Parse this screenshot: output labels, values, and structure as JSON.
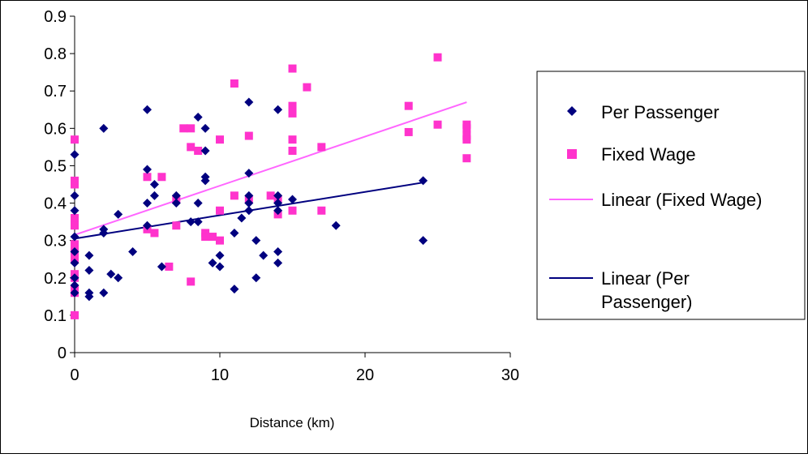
{
  "chart_data": {
    "type": "scatter",
    "title": "",
    "xlabel": "Distance (km)",
    "ylabel": "",
    "xlim": [
      0,
      30
    ],
    "ylim": [
      0,
      0.9
    ],
    "x_ticks": [
      0,
      10,
      20,
      30
    ],
    "y_ticks": [
      0,
      0.1,
      0.2,
      0.3,
      0.4,
      0.5,
      0.6,
      0.7,
      0.8,
      0.9
    ],
    "grid": false,
    "legend_position": "right",
    "legend": {
      "per_passenger": "Per Passenger",
      "fixed_wage": "Fixed Wage",
      "linear_fixed": "Linear (Fixed Wage)",
      "linear_per_line1": "Linear (Per",
      "linear_per_line2": "Passenger)"
    },
    "colors": {
      "per_passenger": "#00007f",
      "fixed_wage": "#ff33cc",
      "linear_fixed": "#ff66ff",
      "linear_per": "#00007f"
    },
    "series": [
      {
        "name": "Per Passenger",
        "marker": "diamond",
        "points": [
          [
            0,
            0.53
          ],
          [
            0,
            0.42
          ],
          [
            0,
            0.38
          ],
          [
            0,
            0.31
          ],
          [
            0,
            0.27
          ],
          [
            0,
            0.24
          ],
          [
            0,
            0.2
          ],
          [
            0,
            0.18
          ],
          [
            0,
            0.16
          ],
          [
            1,
            0.26
          ],
          [
            1,
            0.22
          ],
          [
            1,
            0.16
          ],
          [
            1,
            0.15
          ],
          [
            2,
            0.6
          ],
          [
            2,
            0.33
          ],
          [
            2,
            0.32
          ],
          [
            2,
            0.16
          ],
          [
            2.5,
            0.21
          ],
          [
            3,
            0.37
          ],
          [
            3,
            0.2
          ],
          [
            4,
            0.27
          ],
          [
            5,
            0.65
          ],
          [
            5,
            0.49
          ],
          [
            5,
            0.4
          ],
          [
            5,
            0.34
          ],
          [
            5.5,
            0.45
          ],
          [
            5.5,
            0.42
          ],
          [
            6,
            0.23
          ],
          [
            7,
            0.42
          ],
          [
            7,
            0.4
          ],
          [
            8,
            0.35
          ],
          [
            8.5,
            0.63
          ],
          [
            8.5,
            0.4
          ],
          [
            8.5,
            0.35
          ],
          [
            9,
            0.6
          ],
          [
            9,
            0.54
          ],
          [
            9,
            0.47
          ],
          [
            9,
            0.46
          ],
          [
            9.5,
            0.24
          ],
          [
            10,
            0.26
          ],
          [
            10,
            0.23
          ],
          [
            11,
            0.32
          ],
          [
            11,
            0.17
          ],
          [
            11.5,
            0.36
          ],
          [
            12,
            0.67
          ],
          [
            12,
            0.48
          ],
          [
            12,
            0.42
          ],
          [
            12,
            0.4
          ],
          [
            12,
            0.38
          ],
          [
            12.5,
            0.3
          ],
          [
            12.5,
            0.2
          ],
          [
            13,
            0.26
          ],
          [
            14,
            0.65
          ],
          [
            14,
            0.42
          ],
          [
            14,
            0.4
          ],
          [
            14,
            0.38
          ],
          [
            14,
            0.27
          ],
          [
            14,
            0.24
          ],
          [
            15,
            0.41
          ],
          [
            18,
            0.34
          ],
          [
            24,
            0.46
          ],
          [
            24,
            0.3
          ]
        ]
      },
      {
        "name": "Fixed Wage",
        "marker": "square",
        "points": [
          [
            0,
            0.57
          ],
          [
            0,
            0.46
          ],
          [
            0,
            0.45
          ],
          [
            0,
            0.36
          ],
          [
            0,
            0.35
          ],
          [
            0,
            0.34
          ],
          [
            0,
            0.29
          ],
          [
            0,
            0.28
          ],
          [
            0,
            0.26
          ],
          [
            0,
            0.25
          ],
          [
            0,
            0.21
          ],
          [
            0,
            0.2
          ],
          [
            0,
            0.17
          ],
          [
            0,
            0.16
          ],
          [
            0,
            0.1
          ],
          [
            5,
            0.47
          ],
          [
            5,
            0.33
          ],
          [
            5.5,
            0.32
          ],
          [
            6,
            0.47
          ],
          [
            6.5,
            0.23
          ],
          [
            7,
            0.41
          ],
          [
            7,
            0.34
          ],
          [
            7.5,
            0.6
          ],
          [
            8,
            0.6
          ],
          [
            8,
            0.55
          ],
          [
            8,
            0.19
          ],
          [
            8.5,
            0.54
          ],
          [
            9,
            0.32
          ],
          [
            9,
            0.31
          ],
          [
            9.5,
            0.31
          ],
          [
            10,
            0.57
          ],
          [
            10,
            0.38
          ],
          [
            10,
            0.3
          ],
          [
            11,
            0.72
          ],
          [
            11,
            0.42
          ],
          [
            12,
            0.58
          ],
          [
            12,
            0.41
          ],
          [
            13.5,
            0.42
          ],
          [
            14,
            0.41
          ],
          [
            14,
            0.37
          ],
          [
            15,
            0.76
          ],
          [
            15,
            0.66
          ],
          [
            15,
            0.64
          ],
          [
            15,
            0.57
          ],
          [
            15,
            0.54
          ],
          [
            15,
            0.38
          ],
          [
            16,
            0.71
          ],
          [
            17,
            0.55
          ],
          [
            17,
            0.38
          ],
          [
            23,
            0.66
          ],
          [
            23,
            0.59
          ],
          [
            25,
            0.79
          ],
          [
            25,
            0.61
          ],
          [
            27,
            0.61
          ],
          [
            27,
            0.6
          ],
          [
            27,
            0.58
          ],
          [
            27,
            0.57
          ],
          [
            27,
            0.52
          ]
        ]
      }
    ],
    "trendlines": [
      {
        "name": "Linear (Fixed Wage)",
        "from": [
          0,
          0.315
        ],
        "to": [
          27,
          0.67
        ]
      },
      {
        "name": "Linear (Per Passenger)",
        "from": [
          0,
          0.305
        ],
        "to": [
          24,
          0.455
        ]
      }
    ]
  }
}
